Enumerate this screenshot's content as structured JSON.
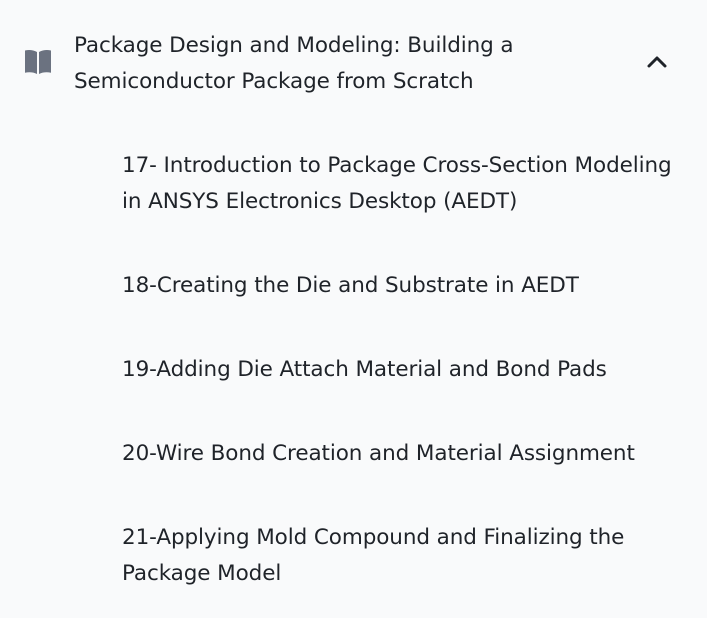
{
  "section": {
    "title": "Package Design and Modeling: Building a Semiconductor Package from Scratch",
    "icon": "book-open-icon",
    "toggle_icon": "chevron-up-icon",
    "expanded": true,
    "lessons": [
      {
        "label": "17- Introduction to Package Cross-Section Modeling in ANSYS Electronics Desktop (AEDT)"
      },
      {
        "label": "18-Creating the Die and Substrate in AEDT"
      },
      {
        "label": "19-Adding Die Attach Material and Bond Pads"
      },
      {
        "label": "20-Wire Bond Creation and Material Assignment"
      },
      {
        "label": "21-Applying Mold Compound and Finalizing the Package Model"
      }
    ]
  },
  "colors": {
    "background": "#f9fafb",
    "text": "#1f2329",
    "icon": "#6b7280"
  }
}
